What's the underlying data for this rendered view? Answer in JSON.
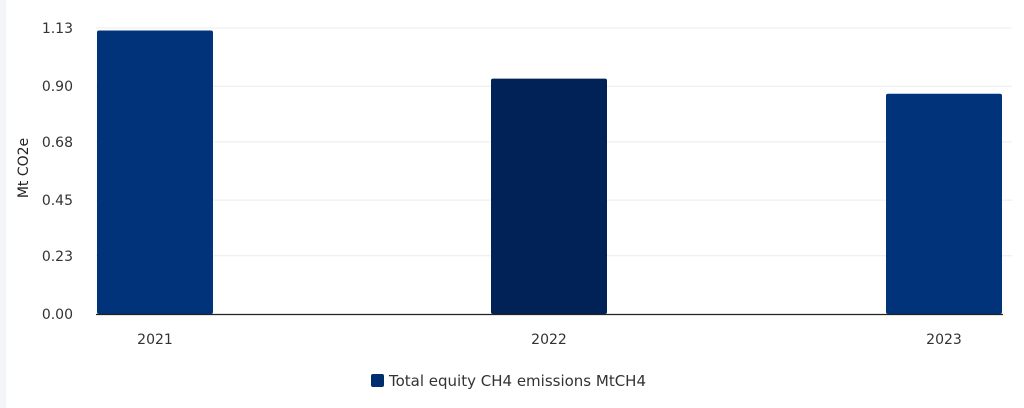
{
  "chart_data": {
    "type": "bar",
    "categories": [
      "2021",
      "2022",
      "2023"
    ],
    "series": [
      {
        "name": "Total equity CH4 emissions MtCH4",
        "values": [
          1.12,
          0.93,
          0.87
        ]
      }
    ],
    "bar_colors": [
      "#00337a",
      "#002256",
      "#00337a"
    ],
    "ylabel": "Mt CO2e",
    "yticks": [
      "0.00",
      "0.23",
      "0.45",
      "0.68",
      "0.90",
      "1.13"
    ],
    "ylim": [
      0,
      1.13
    ],
    "grid": true,
    "legend": "bottom-center",
    "legend_color": "#002d6e"
  }
}
